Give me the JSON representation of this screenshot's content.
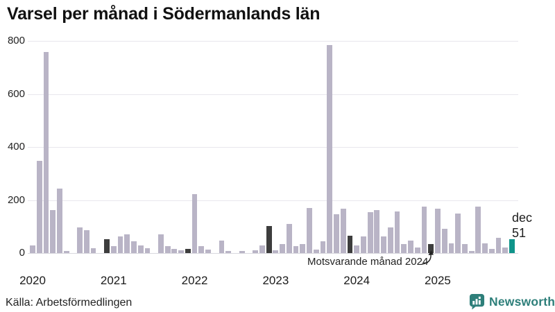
{
  "title": "Varsel per månad i Södermanlands län",
  "source": "Källa: Arbetsförmedlingen",
  "annotation": {
    "text": "Motsvarande månad 2024"
  },
  "latest_point_label": {
    "month": "dec",
    "value": "51"
  },
  "brand": {
    "name": "Newsworthy",
    "color": "#2e7f7a"
  },
  "colors": {
    "bar_default": "#b9b4c6",
    "bar_highlight_dark": "#3d3d3d",
    "bar_highlight_teal": "#0f948a",
    "grid": "#e8e7ed",
    "axis_text": "#222222"
  },
  "chart_data": {
    "type": "bar",
    "title": "Varsel per månad i Södermanlands län",
    "xlabel": "",
    "ylabel": "",
    "ylim": [
      0,
      800
    ],
    "y_ticks": [
      0,
      200,
      400,
      600,
      800
    ],
    "grid": true,
    "x_tick_labels": [
      "2020",
      "2021",
      "2022",
      "2023",
      "2024",
      "2025"
    ],
    "months_per_year": 12,
    "start": "jan 2020",
    "end": "dec 2025",
    "values": [
      30,
      348,
      757,
      162,
      243,
      8,
      0,
      97,
      85,
      18,
      0,
      52,
      25,
      63,
      70,
      45,
      30,
      18,
      0,
      70,
      26,
      15,
      11,
      15,
      222,
      26,
      13,
      0,
      48,
      7,
      0,
      7,
      0,
      10,
      28,
      102,
      10,
      33,
      111,
      26,
      35,
      170,
      13,
      45,
      785,
      146,
      168,
      65,
      29,
      64,
      155,
      161,
      62,
      98,
      157,
      35,
      48,
      22,
      174,
      33,
      167,
      91,
      37,
      148,
      35,
      9,
      176,
      37,
      16,
      57,
      22,
      51
    ],
    "highlight_dark_indices": [
      11,
      23,
      35,
      47,
      59
    ],
    "highlight_dark_meaning": "december varje år",
    "latest_index": 71,
    "latest_value": 51,
    "latest_label": "dec"
  }
}
